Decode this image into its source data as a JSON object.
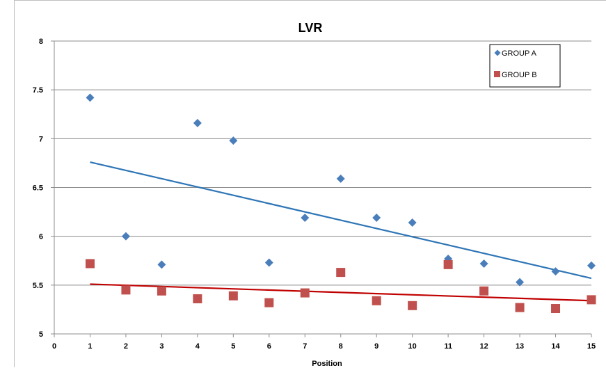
{
  "chart_data": {
    "type": "scatter",
    "title": "LVR",
    "xlabel": "Position",
    "ylabel": "",
    "xlim": [
      0,
      15
    ],
    "ylim": [
      5,
      8
    ],
    "x_ticks": [
      "0",
      "1",
      "2",
      "3",
      "4",
      "5",
      "6",
      "7",
      "8",
      "9",
      "10",
      "11",
      "12",
      "13",
      "14",
      "15"
    ],
    "y_ticks": [
      "5",
      "5.5",
      "6",
      "6.5",
      "7",
      "7.5",
      "8"
    ],
    "grid": "horizontal",
    "legend_position": "top-right",
    "series": [
      {
        "name": "GROUP A",
        "marker": "diamond",
        "color": "#4a7ebb",
        "trend_color": "#2e75b6",
        "x": [
          1,
          2,
          3,
          4,
          5,
          6,
          7,
          8,
          9,
          10,
          11,
          12,
          13,
          14,
          15
        ],
        "y": [
          7.42,
          6.0,
          5.71,
          7.16,
          6.98,
          5.73,
          6.19,
          6.59,
          6.19,
          6.14,
          5.77,
          5.72,
          5.53,
          5.64,
          5.7
        ],
        "trendline": {
          "x": [
            1,
            15
          ],
          "y": [
            6.76,
            5.57
          ]
        }
      },
      {
        "name": "GROUP B",
        "marker": "square",
        "color": "#c0504d",
        "trend_color": "#c00000",
        "x": [
          1,
          2,
          3,
          4,
          5,
          6,
          7,
          8,
          9,
          10,
          11,
          12,
          13,
          14,
          15
        ],
        "y": [
          5.72,
          5.45,
          5.44,
          5.36,
          5.39,
          5.32,
          5.42,
          5.63,
          5.34,
          5.29,
          5.71,
          5.44,
          5.27,
          5.26,
          5.35
        ],
        "trendline": {
          "x": [
            1,
            15
          ],
          "y": [
            5.51,
            5.34
          ]
        }
      }
    ]
  }
}
